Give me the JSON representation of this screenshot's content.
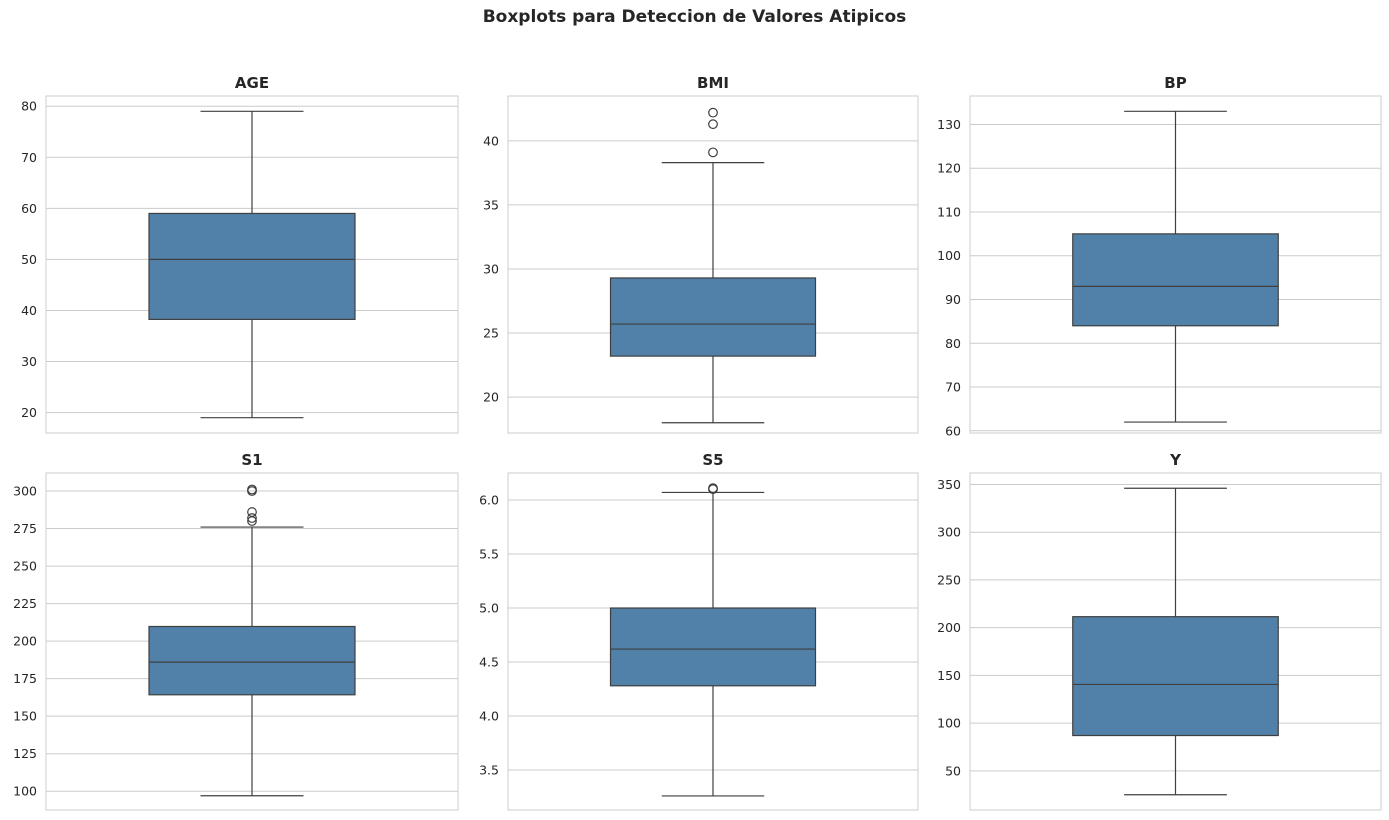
{
  "figure": {
    "title": "Boxplots para Deteccion de Valores Atipicos"
  },
  "style": {
    "box_fill": "#5180a8",
    "line_color": "#3f3f3f",
    "grid_color": "#cccccc",
    "frame_color": "#cccccc"
  },
  "chart_data": [
    {
      "type": "box",
      "title": "AGE",
      "ylim": [
        16,
        82
      ],
      "yticks": [
        20,
        30,
        40,
        50,
        60,
        70,
        80
      ],
      "grid": true,
      "whisker_low": 19,
      "q1": 38.25,
      "median": 50,
      "q3": 59,
      "whisker_high": 79,
      "outliers": []
    },
    {
      "type": "box",
      "title": "BMI",
      "ylim": [
        17.2,
        43.5
      ],
      "yticks": [
        20,
        25,
        30,
        35,
        40
      ],
      "grid": true,
      "whisker_low": 18.0,
      "q1": 23.2,
      "median": 25.7,
      "q3": 29.3,
      "whisker_high": 38.3,
      "outliers": [
        39.1,
        41.3,
        42.2
      ]
    },
    {
      "type": "box",
      "title": "BP",
      "ylim": [
        59.5,
        136.5
      ],
      "yticks": [
        60,
        70,
        80,
        90,
        100,
        110,
        120,
        130
      ],
      "grid": true,
      "whisker_low": 62,
      "q1": 84,
      "median": 93,
      "q3": 105,
      "whisker_high": 133,
      "outliers": []
    },
    {
      "type": "box",
      "title": "S1",
      "ylim": [
        87.5,
        312
      ],
      "yticks": [
        100,
        125,
        150,
        175,
        200,
        225,
        250,
        275,
        300
      ],
      "grid": true,
      "whisker_low": 97,
      "q1": 164.25,
      "median": 186,
      "q3": 209.75,
      "whisker_high": 276,
      "outliers": [
        280,
        282,
        286,
        300,
        301
      ]
    },
    {
      "type": "box",
      "title": "S5",
      "ylim": [
        3.13,
        6.25
      ],
      "yticks": [
        3.5,
        4.0,
        4.5,
        5.0,
        5.5,
        6.0
      ],
      "grid": true,
      "whisker_low": 3.26,
      "q1": 4.28,
      "median": 4.62,
      "q3": 5.0,
      "whisker_high": 6.07,
      "outliers": [
        6.1,
        6.11
      ]
    },
    {
      "type": "box",
      "title": "Y",
      "ylim": [
        9,
        362
      ],
      "yticks": [
        50,
        100,
        150,
        200,
        250,
        300,
        350
      ],
      "grid": true,
      "whisker_low": 25,
      "q1": 87,
      "median": 140.5,
      "q3": 211.5,
      "whisker_high": 346,
      "outliers": []
    }
  ]
}
